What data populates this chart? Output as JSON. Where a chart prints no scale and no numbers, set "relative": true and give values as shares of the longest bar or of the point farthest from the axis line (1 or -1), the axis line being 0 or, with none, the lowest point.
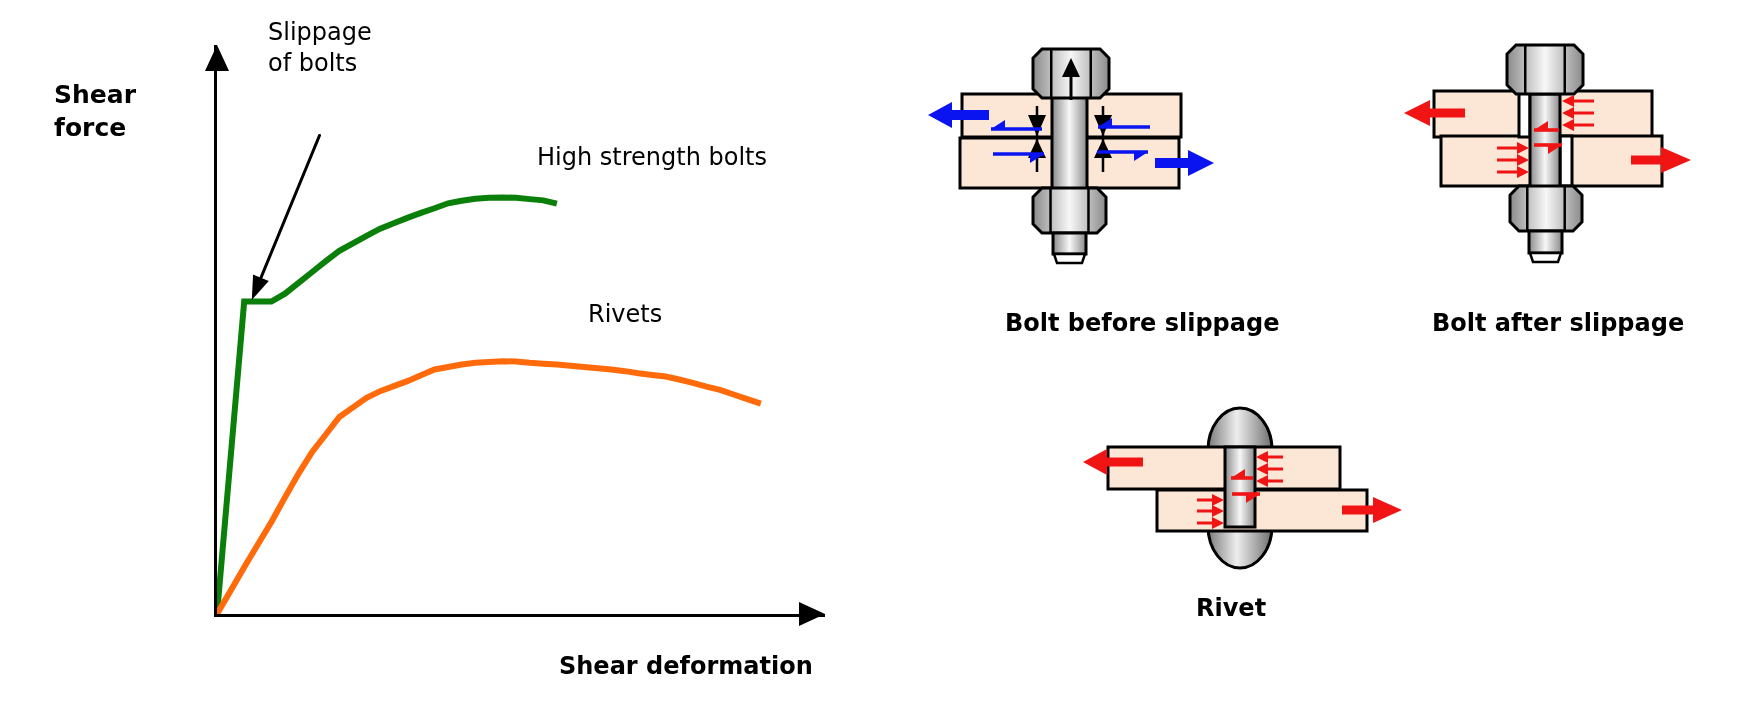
{
  "chart_data": {
    "type": "line",
    "relative": true,
    "xlabel": "Shear deformation",
    "ylabel": "Shear\nforce",
    "line_style": "solid",
    "categories": [
      null,
      null,
      null,
      null,
      null,
      null,
      null,
      null,
      null,
      null,
      null,
      null,
      null,
      null,
      null,
      null,
      null,
      null,
      null,
      null,
      null,
      null,
      null,
      null,
      null,
      null,
      null,
      null,
      null,
      null,
      null,
      null,
      null,
      null,
      null,
      null,
      null,
      null,
      null,
      null,
      null
    ],
    "series": [
      {
        "name": "High strength bolts",
        "color": "#0a7f0a",
        "values": [
          0,
          0.375,
          0.75,
          0.75,
          0.75,
          0.769,
          0.795,
          0.821,
          0.847,
          0.872,
          0.89,
          0.908,
          0.925,
          0.938,
          0.951,
          0.963,
          0.974,
          0.986,
          0.992,
          0.997,
          0.999,
          1.0,
          0.999,
          0.996,
          0.993,
          0.985,
          null,
          null,
          null,
          null,
          null,
          null,
          null,
          null,
          null,
          null,
          null,
          null,
          null,
          null,
          null
        ]
      },
      {
        "name": "Rivets",
        "color": "#ff6b0b",
        "values": [
          0,
          0.056,
          0.112,
          0.167,
          0.221,
          0.28,
          0.337,
          0.389,
          0.431,
          0.473,
          0.496,
          0.519,
          0.535,
          0.547,
          0.559,
          0.573,
          0.587,
          0.593,
          0.599,
          0.603,
          0.605,
          0.607,
          0.606,
          0.603,
          0.601,
          0.599,
          0.596,
          0.593,
          0.59,
          0.587,
          0.583,
          0.578,
          0.574,
          0.57,
          0.563,
          0.555,
          0.546,
          0.538,
          0.527,
          0.516,
          0.505
        ]
      }
    ],
    "annotations": [
      "Slippage\nof bolts",
      "Bolt before slippage",
      "Bolt after slippage",
      "Rivet"
    ]
  }
}
